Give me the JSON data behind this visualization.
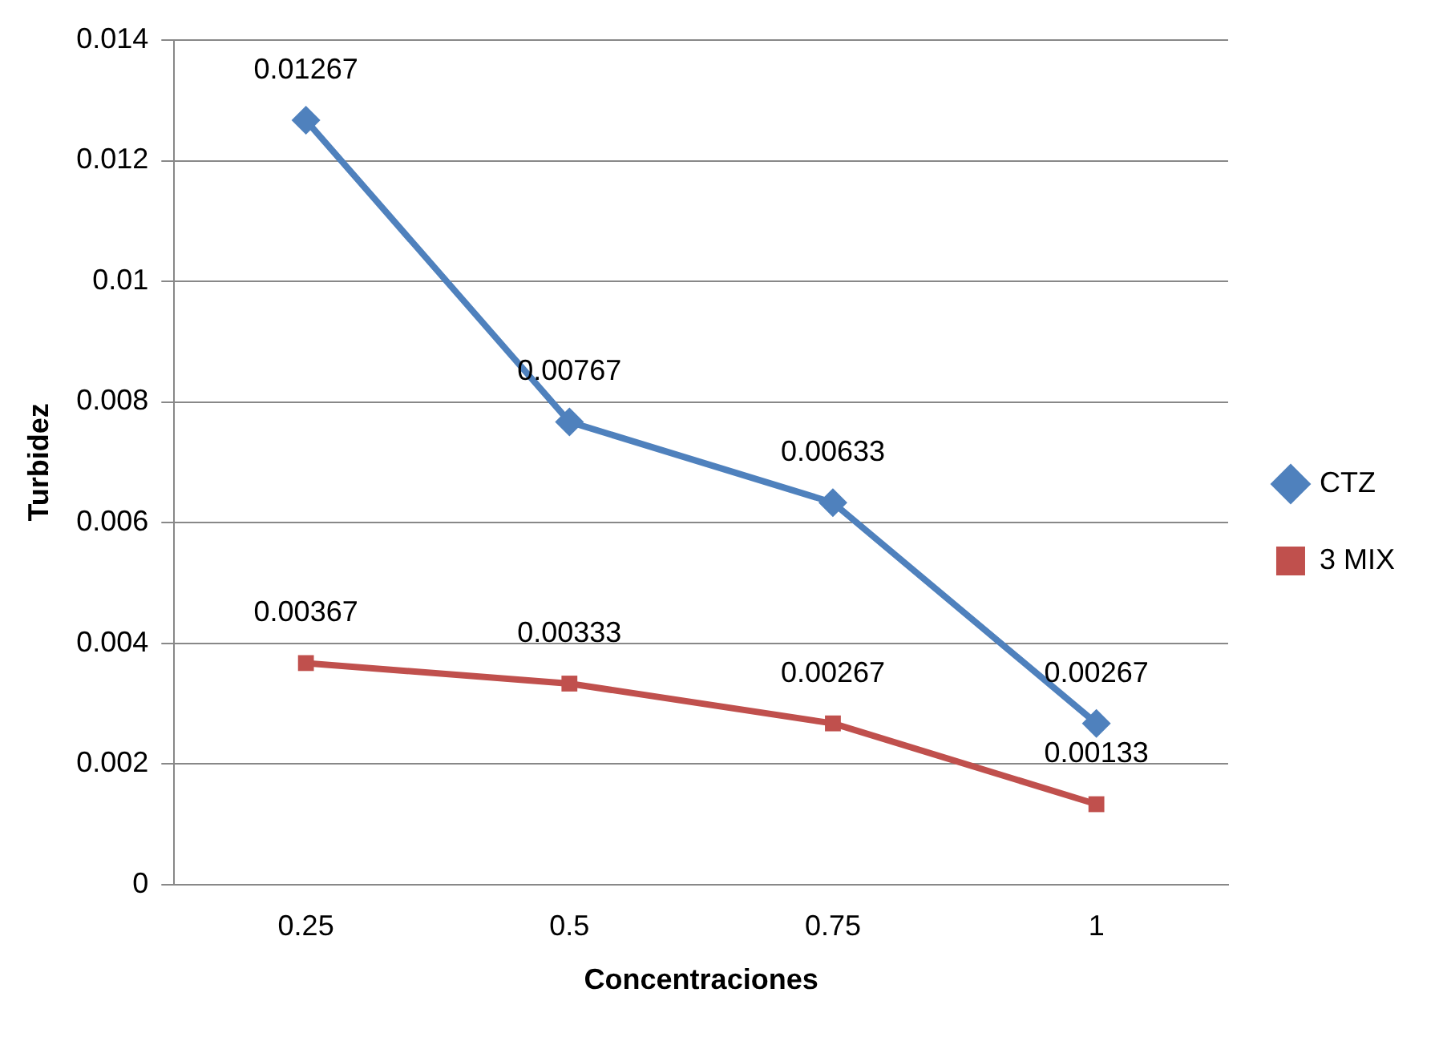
{
  "chart_data": {
    "type": "line",
    "xlabel": "Concentraciones",
    "ylabel": "Turbidez",
    "categories": [
      "0.25",
      "0.5",
      "0.75",
      "1"
    ],
    "series": [
      {
        "name": "CTZ",
        "color": "#4f81bd",
        "marker": "diamond",
        "values": [
          0.01267,
          0.00767,
          0.00633,
          0.00267
        ]
      },
      {
        "name": "3 MIX",
        "color": "#c0504d",
        "marker": "square",
        "values": [
          0.00367,
          0.00333,
          0.00267,
          0.00133
        ]
      }
    ],
    "ylim": [
      0,
      0.014
    ],
    "yticks": [
      0,
      0.002,
      0.004,
      0.006,
      0.008,
      0.01,
      0.012,
      0.014
    ],
    "grid": "y",
    "legend": "right",
    "data_labels": true,
    "line_style": "solid"
  }
}
